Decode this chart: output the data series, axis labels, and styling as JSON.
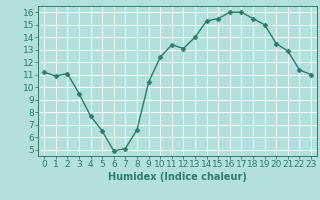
{
  "x": [
    0,
    1,
    2,
    3,
    4,
    5,
    6,
    7,
    8,
    9,
    10,
    11,
    12,
    13,
    14,
    15,
    16,
    17,
    18,
    19,
    20,
    21,
    22,
    23
  ],
  "y": [
    11.2,
    10.9,
    11.1,
    9.5,
    7.7,
    6.5,
    4.9,
    5.1,
    6.6,
    10.4,
    12.4,
    13.4,
    13.1,
    14.0,
    15.3,
    15.5,
    16.0,
    16.0,
    15.5,
    15.0,
    13.5,
    12.9,
    11.4,
    11.0
  ],
  "line_color": "#2d7d6e",
  "marker": "D",
  "marker_size": 2.5,
  "line_width": 1.0,
  "bg_color": "#b2e0dc",
  "grid_color": "#ffffff",
  "xlabel": "Humidex (Indice chaleur)",
  "xlabel_fontsize": 7,
  "tick_fontsize": 6.5,
  "ylim": [
    4.5,
    16.5
  ],
  "yticks": [
    5,
    6,
    7,
    8,
    9,
    10,
    11,
    12,
    13,
    14,
    15,
    16
  ],
  "xticks": [
    0,
    1,
    2,
    3,
    4,
    5,
    6,
    7,
    8,
    9,
    10,
    11,
    12,
    13,
    14,
    15,
    16,
    17,
    18,
    19,
    20,
    21,
    22,
    23
  ],
  "xlim": [
    -0.5,
    23.5
  ]
}
